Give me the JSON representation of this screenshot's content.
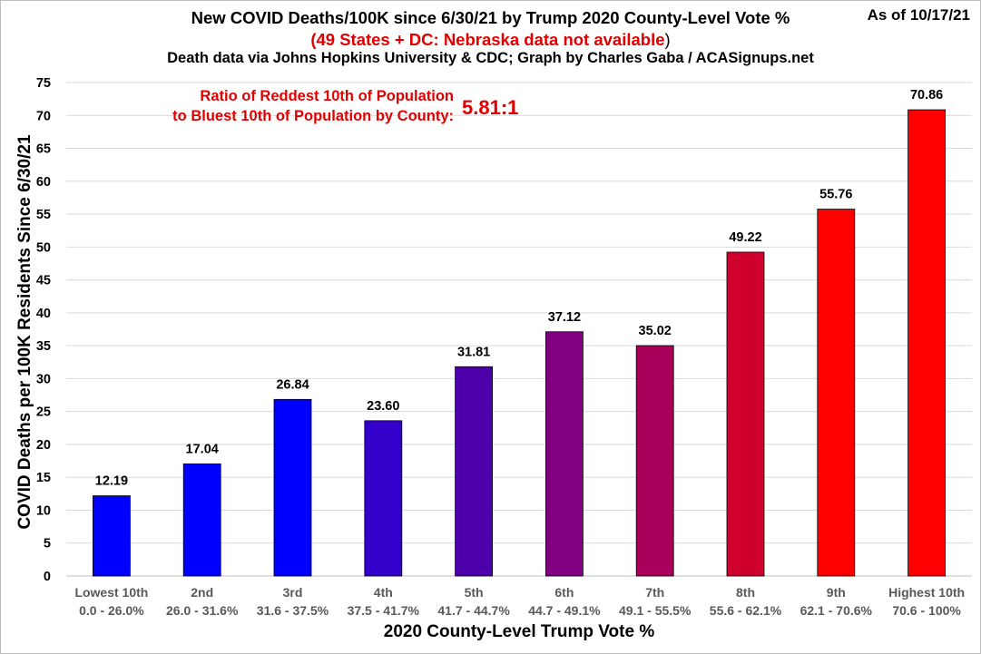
{
  "header": {
    "title_line1": "New COVID Deaths/100K since 6/30/21 by Trump 2020 County-Level Vote %",
    "title_line2_main": "(49 States + DC: Nebraska data not available",
    "title_line2_paren": ")",
    "title_line3": "Death data via Johns Hopkins University & CDC; Graph by Charles Gaba / ACASignups.net",
    "as_of": "As of 10/17/21"
  },
  "chart_data": {
    "type": "bar",
    "title": "New COVID Deaths/100K since 6/30/21 by Trump 2020 County-Level Vote %",
    "subtitle": "(49 States + DC: Nebraska data not available)",
    "xlabel": "2020 County-Level Trump Vote %",
    "ylabel": "COVID Deaths per 100K Residents Since 6/30/21",
    "ylim": [
      0,
      75
    ],
    "yticks": [
      0,
      5,
      10,
      15,
      20,
      25,
      30,
      35,
      40,
      45,
      50,
      55,
      60,
      65,
      70,
      75
    ],
    "grid": true,
    "categories": [
      "Lowest 10th",
      "2nd",
      "3rd",
      "4th",
      "5th",
      "6th",
      "7th",
      "8th",
      "9th",
      "Highest 10th"
    ],
    "category_ranges": [
      "0.0 - 26.0%",
      "26.0 - 31.6%",
      "31.6 - 37.5%",
      "37.5 - 41.7%",
      "41.7 - 44.7%",
      "44.7 - 49.1%",
      "49.1 - 55.5%",
      "55.6 - 62.1%",
      "62.1 - 70.6%",
      "70.6 - 100%"
    ],
    "values": [
      12.19,
      17.04,
      26.84,
      23.6,
      31.81,
      37.12,
      35.02,
      49.22,
      55.76,
      70.86
    ],
    "value_labels": [
      "12.19",
      "17.04",
      "26.84",
      "23.60",
      "31.81",
      "37.12",
      "35.02",
      "49.22",
      "55.76",
      "70.86"
    ],
    "colors": [
      "#0000ff",
      "#0000ff",
      "#0000ff",
      "#3300cc",
      "#4d00aa",
      "#800080",
      "#a8005a",
      "#d0002c",
      "#ff0000",
      "#ff0000"
    ],
    "annotation": {
      "line1": "Ratio of Reddest 10th of Population",
      "line2": "to Bluest 10th of Population by County:",
      "ratio": "5.81:1",
      "color": "#e00000"
    }
  }
}
